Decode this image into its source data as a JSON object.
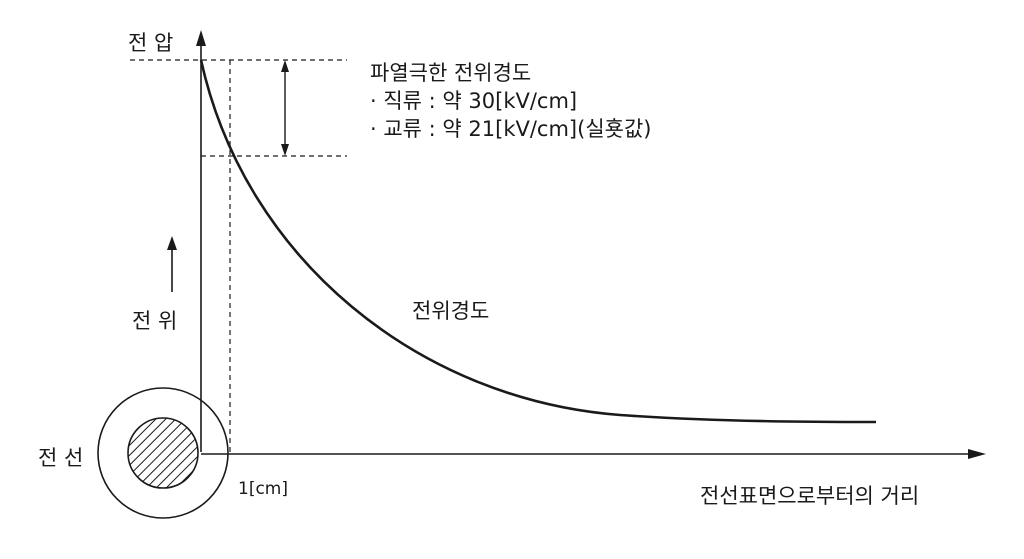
{
  "labels": {
    "voltage_axis": "전 압",
    "potential": "전 위",
    "wire": "전 선",
    "distance_axis": "전선표면으로부터의 거리",
    "one_cm": "1[cm]",
    "curve": "전위경도"
  },
  "breakdown": {
    "title": "파열극한 전위경도",
    "dc": "· 직류 : 약 30[kV/cm]",
    "ac": "· 교류 : 약 21[kV/cm](실횻값)"
  },
  "colors": {
    "ink": "#1a1a1a",
    "hatch": "#1a1a1a",
    "background": "#ffffff"
  }
}
